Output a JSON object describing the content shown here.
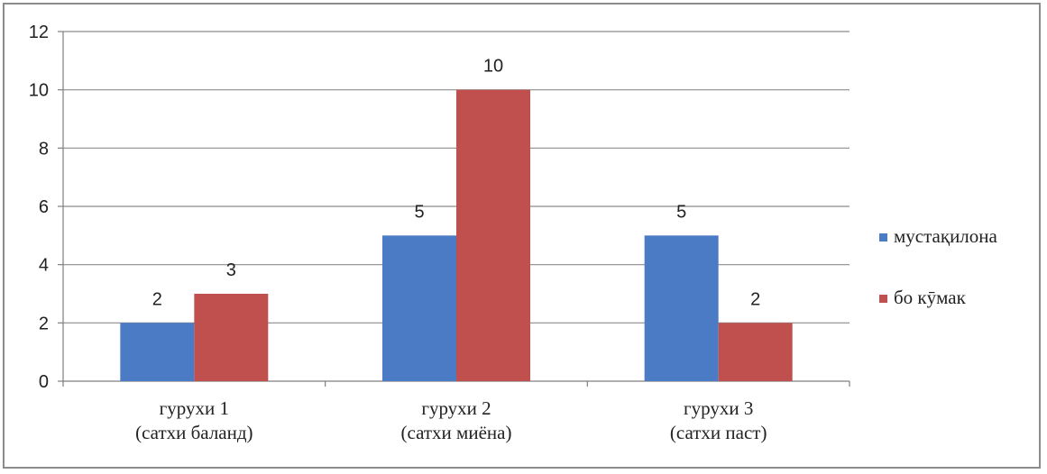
{
  "chart_data": {
    "type": "bar",
    "categories": [
      "гурухи 1\n(сатхи баланд)",
      "гурухи 2\n(сатхи миёна)",
      "гурухи 3\n(сатхи паст)"
    ],
    "series": [
      {
        "name": "мустақилона",
        "values": [
          2,
          5,
          5
        ],
        "color": "#4a7bc4"
      },
      {
        "name": "бо кӯмак",
        "values": [
          3,
          10,
          2
        ],
        "color": "#c0504d"
      }
    ],
    "ylim": [
      0,
      12
    ],
    "yticks": [
      0,
      2,
      4,
      6,
      8,
      10,
      12
    ],
    "grid": true,
    "legend": "right",
    "title": "",
    "xlabel": "",
    "ylabel": ""
  }
}
